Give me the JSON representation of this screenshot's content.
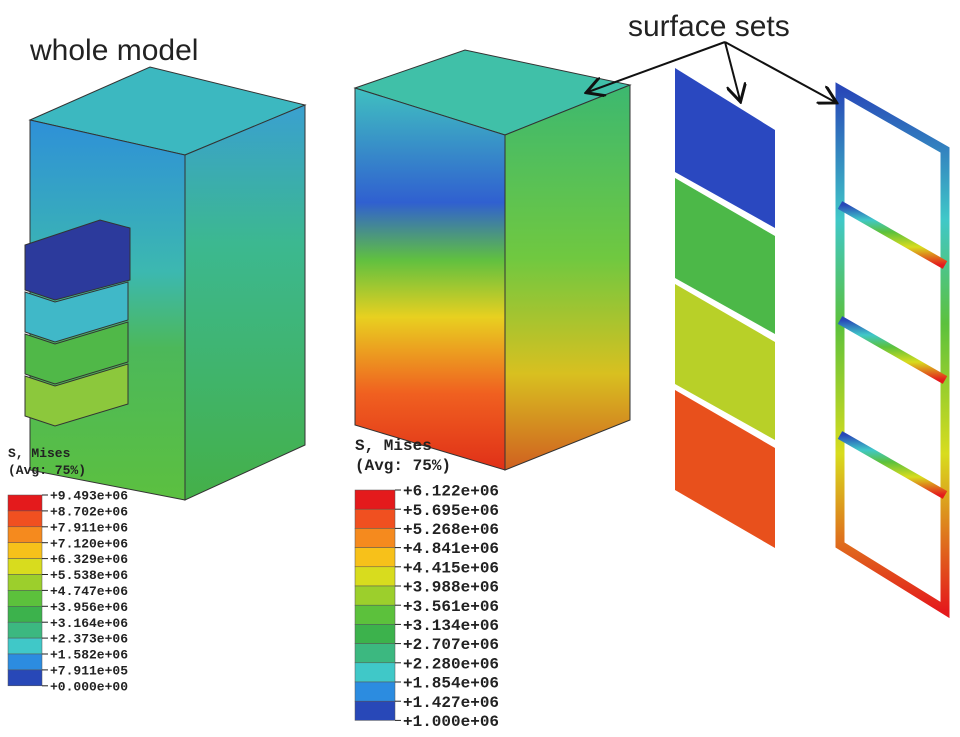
{
  "labels": {
    "whole_model": "whole model",
    "surface_sets": "surface sets"
  },
  "legend_left": {
    "title": "S, Mises",
    "subtitle": "(Avg: 75%)",
    "values": [
      "+9.493e+06",
      "+8.702e+06",
      "+7.911e+06",
      "+7.120e+06",
      "+6.329e+06",
      "+5.538e+06",
      "+4.747e+06",
      "+3.956e+06",
      "+3.164e+06",
      "+2.373e+06",
      "+1.582e+06",
      "+7.911e+05",
      "+0.000e+00"
    ]
  },
  "legend_right": {
    "title": "S, Mises",
    "subtitle": "(Avg: 75%)",
    "values": [
      "+6.122e+06",
      "+5.695e+06",
      "+5.268e+06",
      "+4.841e+06",
      "+4.415e+06",
      "+3.988e+06",
      "+3.561e+06",
      "+3.134e+06",
      "+2.707e+06",
      "+2.280e+06",
      "+1.854e+06",
      "+1.427e+06",
      "+1.000e+06"
    ]
  }
}
